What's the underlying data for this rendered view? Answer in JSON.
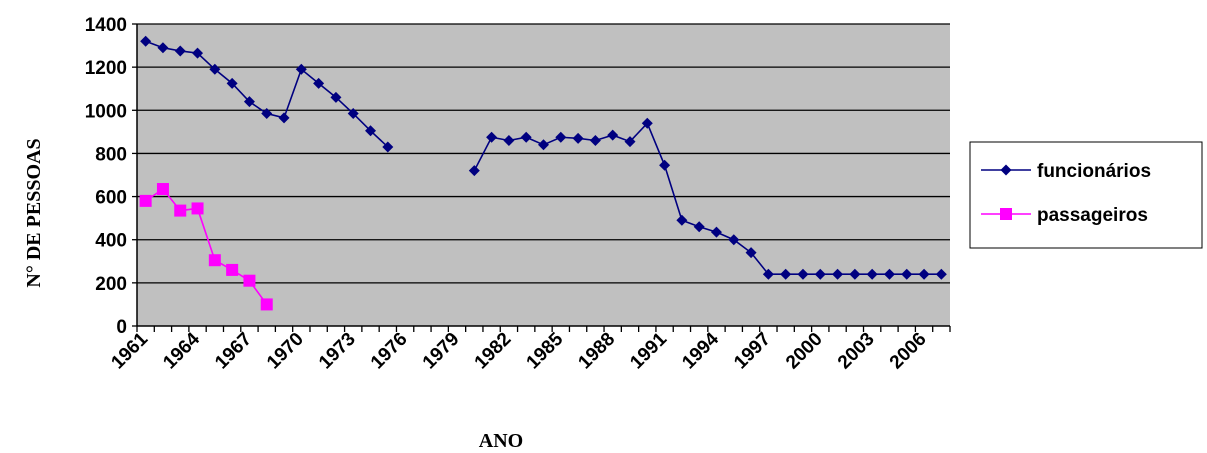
{
  "chart_data": {
    "type": "line",
    "title": "",
    "xlabel": "ANO",
    "ylabel": "N° DE PESSOAS",
    "ylim": [
      0,
      1400
    ],
    "yticks": [
      0,
      200,
      400,
      600,
      800,
      1000,
      1200,
      1400
    ],
    "x": [
      1961,
      1962,
      1963,
      1964,
      1965,
      1966,
      1967,
      1968,
      1969,
      1970,
      1971,
      1972,
      1973,
      1974,
      1975,
      1976,
      1977,
      1978,
      1979,
      1980,
      1981,
      1982,
      1983,
      1984,
      1985,
      1986,
      1987,
      1988,
      1989,
      1990,
      1991,
      1992,
      1993,
      1994,
      1995,
      1996,
      1997,
      1998,
      1999,
      2000,
      2001,
      2002,
      2003,
      2004,
      2005,
      2006,
      2007
    ],
    "xtick_labels": [
      1961,
      1964,
      1967,
      1970,
      1973,
      1976,
      1979,
      1982,
      1985,
      1988,
      1991,
      1994,
      1997,
      2000,
      2003,
      2006
    ],
    "grid": true,
    "legend_position": "right",
    "plot_background": "#c0c0c0",
    "series": [
      {
        "name": "funcionários",
        "color": "#000080",
        "marker": "diamond",
        "values": [
          1320,
          1290,
          1275,
          1265,
          1190,
          1125,
          1040,
          985,
          965,
          1190,
          1125,
          1060,
          985,
          905,
          830,
          null,
          null,
          null,
          null,
          720,
          875,
          860,
          875,
          840,
          875,
          870,
          860,
          885,
          855,
          940,
          745,
          490,
          460,
          435,
          400,
          340,
          240,
          240,
          240,
          240,
          240,
          240,
          240,
          240,
          240,
          240,
          240
        ]
      },
      {
        "name": "passageiros",
        "color": "#ff00ff",
        "marker": "square",
        "values": [
          580,
          635,
          535,
          545,
          305,
          260,
          210,
          100,
          null,
          null,
          null,
          null,
          null,
          null,
          null,
          null,
          null,
          null,
          null,
          null,
          null,
          null,
          null,
          null,
          null,
          null,
          null,
          null,
          null,
          null,
          null,
          null,
          null,
          null,
          null,
          null,
          null,
          null,
          null,
          null,
          null,
          null,
          null,
          null,
          null,
          null,
          null
        ]
      }
    ]
  }
}
